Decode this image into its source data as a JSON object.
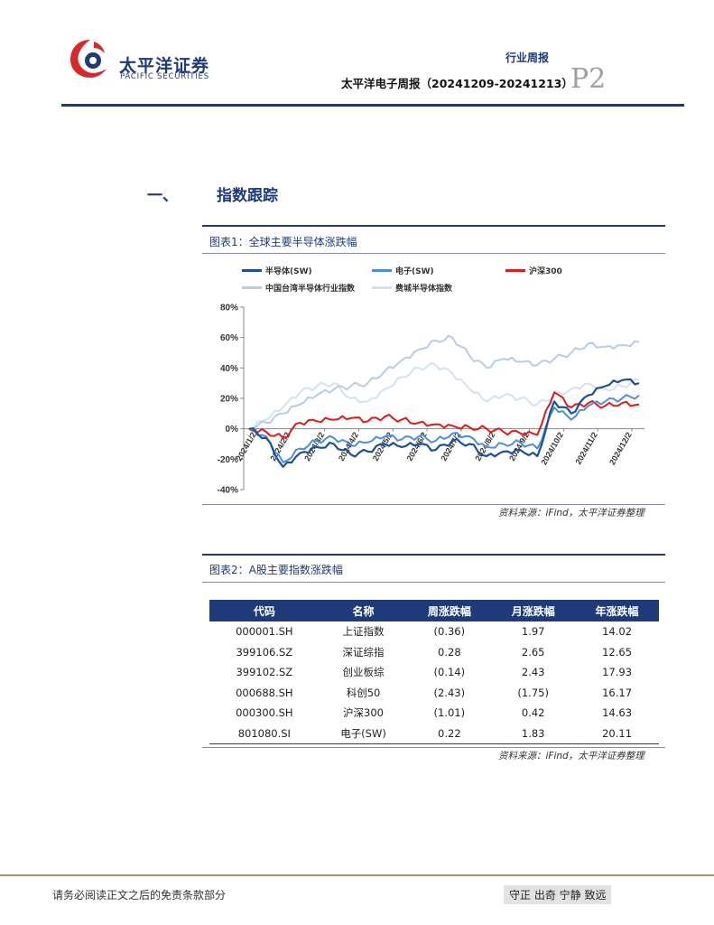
{
  "header": {
    "brand_cn": "太平洋证券",
    "brand_en": "PACIFIC SECURITIES",
    "report_type": "行业周报",
    "report_title": "太平洋电子周报（20241209-20241213）",
    "page": "P2"
  },
  "section": {
    "number": "一、",
    "title": "指数跟踪"
  },
  "figure1": {
    "caption": "图表1：全球主要半导体涨跌幅",
    "source": "资料来源：iFind，太平洋证券整理"
  },
  "chart_data": {
    "type": "line",
    "title": "",
    "xlabel": "",
    "ylabel": "",
    "ylim": [
      -40,
      80
    ],
    "y_ticks": [
      "80%",
      "60%",
      "40%",
      "20%",
      "0%",
      "-20%",
      "-40%"
    ],
    "x_ticks": [
      "2024/1/2",
      "2024/2/2",
      "2024/3/2",
      "2024/4/2",
      "2024/5/2",
      "2024/6/2",
      "2024/7/2",
      "2024/8/2",
      "2024/9/2",
      "2024/10/2",
      "2024/11/2",
      "2024/12/2"
    ],
    "legend_placement": "top",
    "grid": false,
    "x": [
      "2024/1/2",
      "2024/1/17",
      "2024/2/2",
      "2024/2/17",
      "2024/3/2",
      "2024/3/17",
      "2024/4/2",
      "2024/4/17",
      "2024/5/2",
      "2024/5/17",
      "2024/6/2",
      "2024/6/17",
      "2024/7/2",
      "2024/7/17",
      "2024/8/2",
      "2024/8/17",
      "2024/9/2",
      "2024/9/17",
      "2024/10/2",
      "2024/10/17",
      "2024/11/2",
      "2024/11/17",
      "2024/12/2",
      "2024/12/13"
    ],
    "series": [
      {
        "name": "半导体(SW)",
        "color": "#1f4e9a",
        "width": 2.2,
        "values": [
          0,
          -6,
          -25,
          -16,
          -12,
          -10,
          -17,
          -15,
          -10,
          -12,
          -10,
          -14,
          -8,
          -10,
          -18,
          -15,
          -14,
          -18,
          18,
          10,
          22,
          28,
          32,
          30
        ]
      },
      {
        "name": "电子(SW)",
        "color": "#4d8fd6",
        "width": 2.0,
        "values": [
          0,
          -5,
          -22,
          -13,
          -8,
          -6,
          -11,
          -9,
          -5,
          -7,
          -5,
          -8,
          -3,
          -5,
          -12,
          -10,
          -9,
          -13,
          14,
          6,
          15,
          18,
          20,
          22
        ]
      },
      {
        "name": "沪深300",
        "color": "#e01a1a",
        "width": 2.0,
        "values": [
          0,
          -2,
          -6,
          4,
          5,
          6,
          7,
          5,
          8,
          6,
          4,
          3,
          2,
          1,
          0,
          -2,
          -3,
          -4,
          24,
          14,
          17,
          15,
          17,
          16
        ]
      },
      {
        "name": "中国台湾半导体行业指数",
        "color": "#b7cde6",
        "width": 2.0,
        "values": [
          0,
          4,
          10,
          16,
          22,
          26,
          28,
          30,
          38,
          45,
          52,
          58,
          60,
          48,
          40,
          46,
          44,
          42,
          46,
          50,
          56,
          54,
          55,
          57
        ]
      },
      {
        "name": "费城半导体指数",
        "color": "#d3e1f0",
        "width": 2.0,
        "values": [
          0,
          6,
          14,
          24,
          28,
          30,
          20,
          18,
          26,
          34,
          40,
          42,
          36,
          26,
          18,
          22,
          20,
          16,
          22,
          26,
          30,
          26,
          28,
          32
        ]
      }
    ]
  },
  "figure2": {
    "caption": "图表2：A股主要指数涨跌幅",
    "source": "资料来源：iFind，太平洋证券整理",
    "columns": [
      "代码",
      "名称",
      "周涨跌幅",
      "月涨跌幅",
      "年涨跌幅"
    ],
    "rows": [
      {
        "code": "000001.SH",
        "name": "上证指数",
        "week": "(0.36)",
        "month": "1.97",
        "year": "14.02"
      },
      {
        "code": "399106.SZ",
        "name": "深证综指",
        "week": "0.28",
        "month": "2.65",
        "year": "12.65"
      },
      {
        "code": "399102.SZ",
        "name": "创业板综",
        "week": "(0.14)",
        "month": "2.43",
        "year": "17.93"
      },
      {
        "code": "000688.SH",
        "name": "科创50",
        "week": "(2.43)",
        "month": "(1.75)",
        "year": "16.17"
      },
      {
        "code": "000300.SH",
        "name": "沪深300",
        "week": "(1.01)",
        "month": "0.42",
        "year": "14.63"
      },
      {
        "code": "801080.SI",
        "name": "电子(SW)",
        "week": "0.22",
        "month": "1.83",
        "year": "20.11"
      }
    ]
  },
  "footer": {
    "disclaimer": "请务必阅读正文之后的免责条款部分",
    "motto": "守正 出奇 宁静 致远"
  }
}
